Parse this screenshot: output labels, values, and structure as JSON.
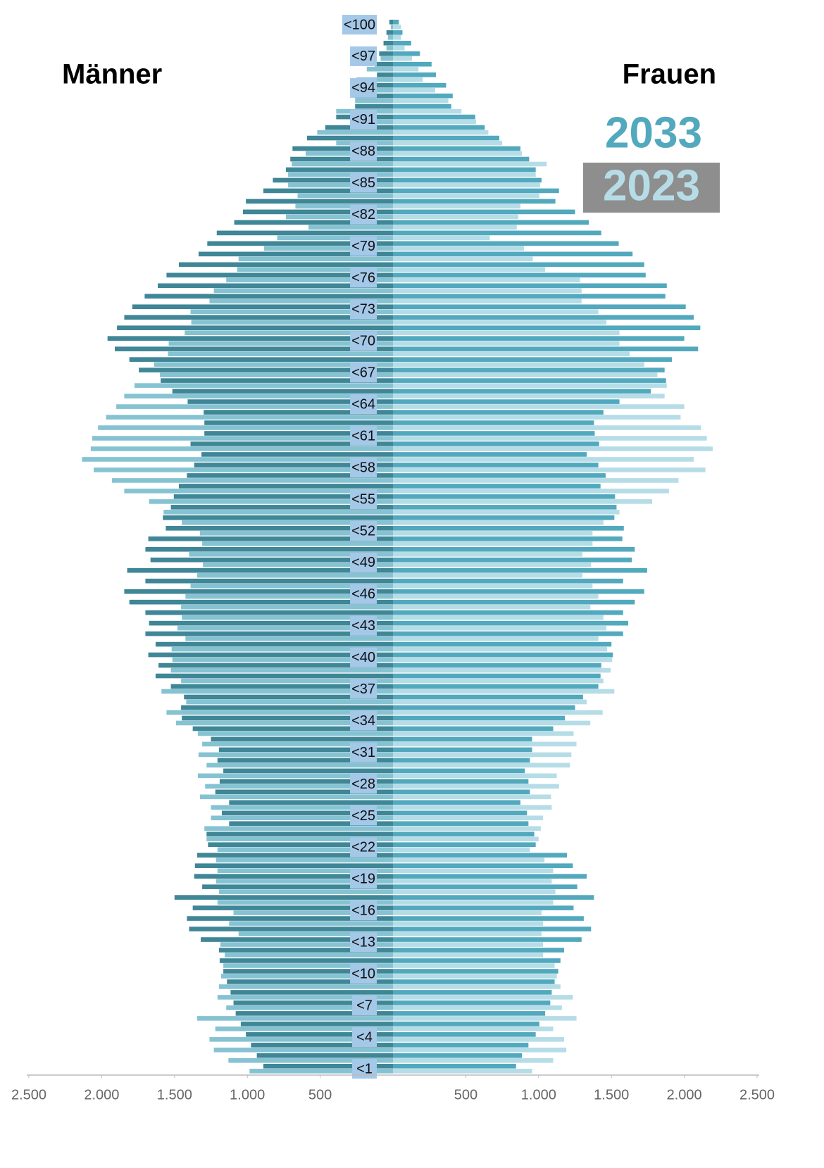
{
  "chart_data": {
    "type": "pyramid",
    "left_label": "Männer",
    "right_label": "Frauen",
    "categories": [
      "<1",
      null,
      null,
      "<4",
      null,
      null,
      "<7",
      null,
      null,
      "<10",
      null,
      null,
      "<13",
      null,
      null,
      "<16",
      null,
      null,
      "<19",
      null,
      null,
      "<22",
      null,
      null,
      "<25",
      null,
      null,
      "<28",
      null,
      null,
      "<31",
      null,
      null,
      "<34",
      null,
      null,
      "<37",
      null,
      null,
      "<40",
      null,
      null,
      "<43",
      null,
      null,
      "<46",
      null,
      null,
      "<49",
      null,
      null,
      "<52",
      null,
      null,
      "<55",
      null,
      null,
      "<58",
      null,
      null,
      "<61",
      null,
      null,
      "<64",
      null,
      null,
      "<67",
      null,
      null,
      "<70",
      null,
      null,
      "<73",
      null,
      null,
      "<76",
      null,
      null,
      "<79",
      null,
      null,
      "<82",
      null,
      null,
      "<85",
      null,
      null,
      "<88",
      null,
      null,
      "<91",
      null,
      null,
      "<94",
      null,
      null,
      "<97",
      null,
      null,
      "<100"
    ],
    "series": [
      {
        "name": "2033",
        "color_men": "#3f8697",
        "color_women": "#52a9be",
        "men": [
          -890,
          -935,
          -975,
          -1010,
          -1045,
          -1080,
          -1095,
          -1115,
          -1140,
          -1165,
          -1190,
          -1195,
          -1320,
          -1400,
          -1415,
          -1375,
          -1500,
          -1310,
          -1365,
          -1360,
          -1345,
          -1270,
          -1280,
          -1125,
          -1175,
          -1125,
          -1220,
          -1190,
          -1165,
          -1205,
          -1195,
          -1250,
          -1375,
          -1450,
          -1455,
          -1435,
          -1525,
          -1630,
          -1610,
          -1680,
          -1630,
          -1700,
          -1675,
          -1700,
          -1810,
          -1845,
          -1700,
          -1825,
          -1665,
          -1700,
          -1680,
          -1560,
          -1580,
          -1525,
          -1505,
          -1470,
          -1415,
          -1365,
          -1315,
          -1390,
          -1295,
          -1295,
          -1300,
          -1410,
          -1515,
          -1595,
          -1745,
          -1810,
          -1910,
          -1960,
          -1895,
          -1845,
          -1790,
          -1705,
          -1615,
          -1555,
          -1470,
          -1335,
          -1275,
          -1210,
          -1090,
          -1030,
          -1010,
          -890,
          -825,
          -735,
          -705,
          -690,
          -590,
          -465,
          -390,
          -260,
          -260,
          -195,
          -110,
          -125,
          -95,
          -65,
          -45,
          -25
        ],
        "women": [
          845,
          885,
          930,
          980,
          1005,
          1045,
          1080,
          1090,
          1110,
          1135,
          1150,
          1175,
          1295,
          1360,
          1310,
          1240,
          1380,
          1265,
          1330,
          1235,
          1195,
          980,
          970,
          930,
          920,
          875,
          940,
          930,
          905,
          940,
          955,
          955,
          1100,
          1180,
          1250,
          1305,
          1410,
          1425,
          1430,
          1510,
          1500,
          1580,
          1615,
          1580,
          1660,
          1725,
          1580,
          1745,
          1640,
          1660,
          1575,
          1585,
          1520,
          1535,
          1525,
          1425,
          1460,
          1410,
          1330,
          1415,
          1385,
          1380,
          1445,
          1555,
          1770,
          1875,
          1865,
          1915,
          2095,
          2000,
          2110,
          2065,
          2010,
          1870,
          1880,
          1735,
          1725,
          1645,
          1550,
          1430,
          1345,
          1250,
          1115,
          1140,
          1020,
          980,
          935,
          875,
          730,
          630,
          565,
          400,
          410,
          365,
          295,
          265,
          185,
          125,
          65,
          40
        ]
      },
      {
        "name": "2023",
        "color_men": "#86c3d2",
        "color_women": "#b6dde7",
        "men": [
          -985,
          -1130,
          -1230,
          -1260,
          -1220,
          -1345,
          -1145,
          -1205,
          -1195,
          -1180,
          -1165,
          -1155,
          -1185,
          -1060,
          -1125,
          -1095,
          -1205,
          -1195,
          -1215,
          -1205,
          -1215,
          -1205,
          -1280,
          -1295,
          -1250,
          -1250,
          -1325,
          -1290,
          -1340,
          -1280,
          -1335,
          -1310,
          -1340,
          -1490,
          -1555,
          -1420,
          -1590,
          -1455,
          -1525,
          -1515,
          -1520,
          -1425,
          -1480,
          -1450,
          -1455,
          -1425,
          -1390,
          -1345,
          -1305,
          -1400,
          -1310,
          -1325,
          -1450,
          -1575,
          -1675,
          -1845,
          -1930,
          -2055,
          -2135,
          -2075,
          -2065,
          -2025,
          -1970,
          -1900,
          -1845,
          -1775,
          -1600,
          -1640,
          -1545,
          -1540,
          -1430,
          -1385,
          -1390,
          -1260,
          -1230,
          -1145,
          -1070,
          -1060,
          -885,
          -795,
          -580,
          -735,
          -670,
          -655,
          -720,
          -720,
          -695,
          -600,
          -390,
          -520,
          -295,
          -390,
          -260,
          -205,
          -250,
          -180,
          -85,
          -45,
          -35,
          -15
        ],
        "women": [
          955,
          1100,
          1190,
          1175,
          1100,
          1260,
          1160,
          1235,
          1150,
          1125,
          1110,
          1030,
          1030,
          1020,
          1030,
          1020,
          1100,
          1115,
          1090,
          1100,
          1040,
          940,
          1000,
          1015,
          1030,
          1090,
          1085,
          1140,
          1125,
          1215,
          1225,
          1260,
          1240,
          1355,
          1440,
          1330,
          1520,
          1445,
          1495,
          1505,
          1470,
          1410,
          1465,
          1445,
          1355,
          1410,
          1370,
          1300,
          1360,
          1300,
          1370,
          1370,
          1445,
          1555,
          1780,
          1895,
          1960,
          2145,
          2065,
          2195,
          2155,
          2115,
          1975,
          2000,
          1865,
          1880,
          1815,
          1725,
          1625,
          1555,
          1555,
          1465,
          1410,
          1295,
          1295,
          1285,
          1045,
          960,
          900,
          665,
          850,
          860,
          875,
          1005,
          1010,
          980,
          1055,
          885,
          750,
          655,
          570,
          470,
          380,
          290,
          205,
          175,
          130,
          80,
          55,
          55
        ]
      }
    ],
    "xlim": [
      -2500,
      2500
    ],
    "xticks": [
      {
        "value": -2500,
        "label": "2.500"
      },
      {
        "value": -2000,
        "label": "2.000"
      },
      {
        "value": -1500,
        "label": "1.500"
      },
      {
        "value": -1000,
        "label": "1.000"
      },
      {
        "value": -500,
        "label": "500"
      },
      {
        "value": 500,
        "label": "500"
      },
      {
        "value": 1000,
        "label": "1.000"
      },
      {
        "value": 1500,
        "label": "1.500"
      },
      {
        "value": 2000,
        "label": "2.000"
      },
      {
        "value": 2500,
        "label": "2.500"
      }
    ]
  }
}
